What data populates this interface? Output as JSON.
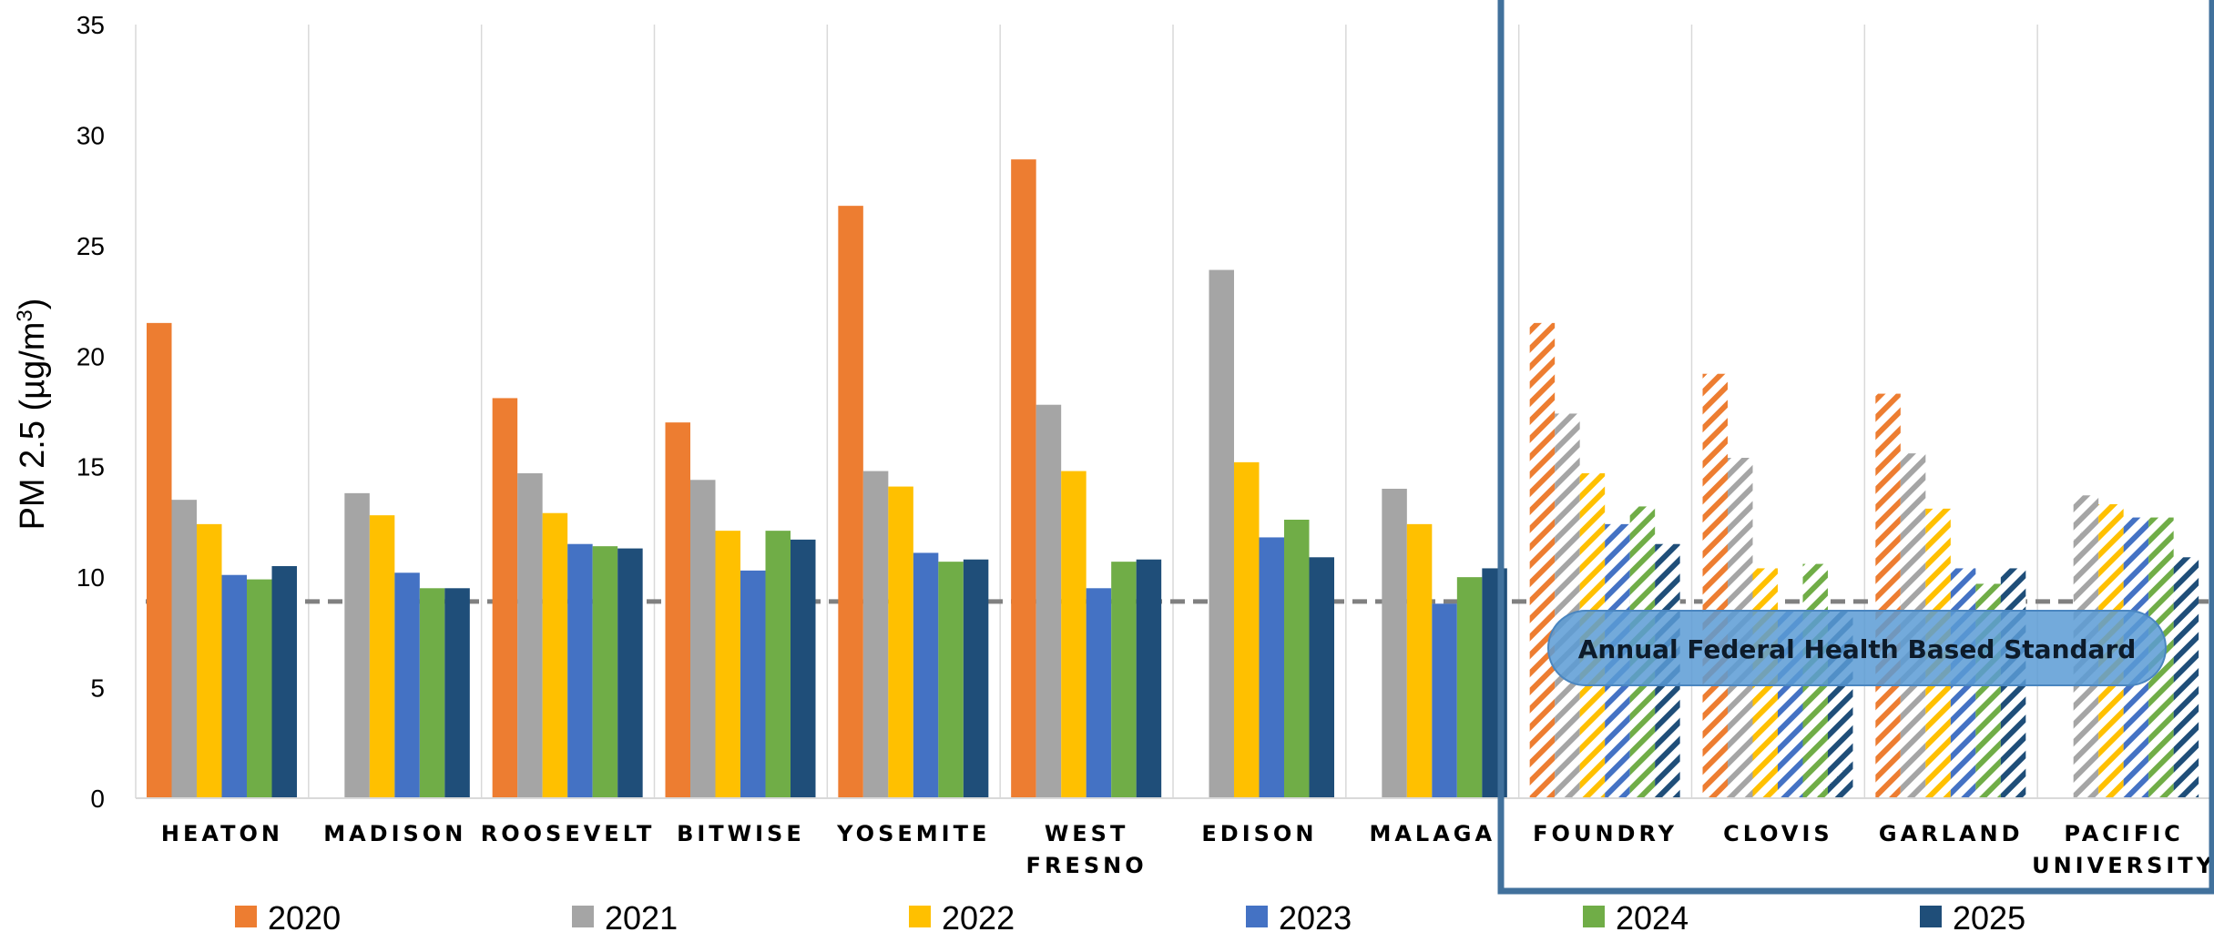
{
  "chart_data": {
    "type": "bar",
    "ylabel_main": "PM 2.5 (µg/m",
    "ylabel_sup": "3",
    "ylabel_close": ")",
    "ylim": [
      0,
      35
    ],
    "yticks": [
      0,
      5,
      10,
      15,
      20,
      25,
      30,
      35
    ],
    "grid": "vertical separators between categories",
    "legend_position": "bottom",
    "categories": [
      [
        "HEATON"
      ],
      [
        "MADISON"
      ],
      [
        "ROOSEVELT"
      ],
      [
        "BITWISE"
      ],
      [
        "YOSEMITE"
      ],
      [
        "WEST",
        "FRESNO"
      ],
      [
        "EDISON"
      ],
      [
        "MALAGA"
      ],
      [
        "FOUNDRY"
      ],
      [
        "CLOVIS"
      ],
      [
        "GARLAND"
      ],
      [
        "PACIFIC",
        "UNIVERSITY"
      ]
    ],
    "hatched_categories": [
      "FOUNDRY",
      "CLOVIS",
      "GARLAND",
      "PACIFIC UNIVERSITY"
    ],
    "series": [
      {
        "name": "2020",
        "color": "#ED7D31",
        "values": [
          21.5,
          null,
          18.1,
          17.0,
          26.8,
          28.9,
          null,
          null,
          21.5,
          19.2,
          18.3,
          null
        ]
      },
      {
        "name": "2021",
        "color": "#A5A5A5",
        "values": [
          13.5,
          13.8,
          14.7,
          14.4,
          14.8,
          17.8,
          23.9,
          14.0,
          17.4,
          15.4,
          15.6,
          13.7
        ]
      },
      {
        "name": "2022",
        "color": "#FFC000",
        "values": [
          12.4,
          12.8,
          12.9,
          12.1,
          14.1,
          14.8,
          15.2,
          12.4,
          14.7,
          10.4,
          13.1,
          13.3
        ]
      },
      {
        "name": "2023",
        "color": "#4472C4",
        "values": [
          10.1,
          10.2,
          11.5,
          10.3,
          11.1,
          9.5,
          11.8,
          8.8,
          12.4,
          8.5,
          10.4,
          12.7
        ]
      },
      {
        "name": "2024",
        "color": "#70AD47",
        "values": [
          9.9,
          9.5,
          11.4,
          12.1,
          10.7,
          10.7,
          12.6,
          10.0,
          13.2,
          10.6,
          9.7,
          12.7
        ]
      },
      {
        "name": "2025",
        "color": "#1F4E79",
        "values": [
          10.5,
          9.5,
          11.3,
          11.7,
          10.8,
          10.8,
          10.9,
          10.4,
          11.5,
          8.5,
          10.4,
          10.9
        ]
      }
    ],
    "reference_line": {
      "value": 8.9,
      "color": "#808080",
      "label": "Annual Federal Health Based Standard"
    },
    "highlight_box_color": "#41719C",
    "annotation_color": "#5B9BD5"
  }
}
